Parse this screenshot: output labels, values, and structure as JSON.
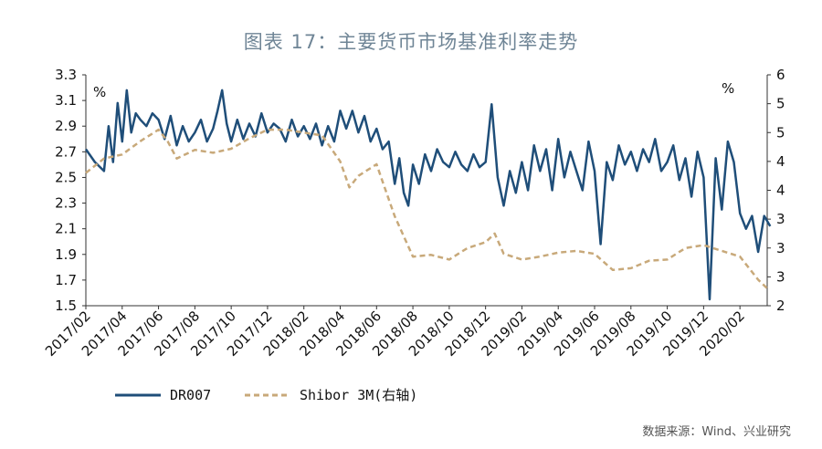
{
  "title": "图表 17：主要货币市场基准利率走势",
  "source": "数据来源：Wind、兴业研究",
  "chart_data": {
    "type": "line",
    "left_unit": "%",
    "right_unit": "%",
    "left_ylim": [
      1.5,
      3.3
    ],
    "right_ylim": [
      2,
      6
    ],
    "left_ticks": [
      "3.3",
      "3.1",
      "2.9",
      "2.7",
      "2.5",
      "2.3",
      "2.1",
      "1.9",
      "1.7",
      "1.5"
    ],
    "right_ticks": [
      "6",
      "5",
      "5",
      "4",
      "4",
      "3",
      "3",
      "3",
      "2"
    ],
    "x_ticks": [
      "2017/02",
      "2017/04",
      "2017/06",
      "2017/08",
      "2017/10",
      "2017/12",
      "2018/02",
      "2018/04",
      "2018/06",
      "2018/08",
      "2018/10",
      "2018/12",
      "2019/02",
      "2019/04",
      "2019/06",
      "2019/08",
      "2019/10",
      "2019/12",
      "2020/02"
    ],
    "x_range": [
      "2017/02",
      "2020/03"
    ],
    "series": [
      {
        "name": "DR007",
        "axis": "left",
        "color": "#1f4e79",
        "style": "solid",
        "points": [
          [
            "2017/02",
            2.72
          ],
          [
            "2017/02",
            2.62
          ],
          [
            "2017/03",
            2.55
          ],
          [
            "2017/03",
            2.9
          ],
          [
            "2017/03",
            2.62
          ],
          [
            "2017/03",
            3.08
          ],
          [
            "2017/04",
            2.78
          ],
          [
            "2017/04",
            3.18
          ],
          [
            "2017/04",
            2.85
          ],
          [
            "2017/04",
            3.0
          ],
          [
            "2017/05",
            2.95
          ],
          [
            "2017/05",
            2.9
          ],
          [
            "2017/05",
            3.0
          ],
          [
            "2017/06",
            2.95
          ],
          [
            "2017/06",
            2.8
          ],
          [
            "2017/06",
            2.98
          ],
          [
            "2017/07",
            2.75
          ],
          [
            "2017/07",
            2.9
          ],
          [
            "2017/07",
            2.78
          ],
          [
            "2017/08",
            2.85
          ],
          [
            "2017/08",
            2.95
          ],
          [
            "2017/08",
            2.78
          ],
          [
            "2017/09",
            2.88
          ],
          [
            "2017/09",
            3.02
          ],
          [
            "2017/09",
            3.18
          ],
          [
            "2017/09",
            2.92
          ],
          [
            "2017/10",
            2.78
          ],
          [
            "2017/10",
            2.95
          ],
          [
            "2017/10",
            2.8
          ],
          [
            "2017/11",
            2.92
          ],
          [
            "2017/11",
            2.82
          ],
          [
            "2017/11",
            3.0
          ],
          [
            "2017/12",
            2.85
          ],
          [
            "2017/12",
            2.92
          ],
          [
            "2017/12",
            2.88
          ],
          [
            "2018/01",
            2.78
          ],
          [
            "2018/01",
            2.95
          ],
          [
            "2018/01",
            2.82
          ],
          [
            "2018/02",
            2.9
          ],
          [
            "2018/02",
            2.8
          ],
          [
            "2018/02",
            2.92
          ],
          [
            "2018/03",
            2.75
          ],
          [
            "2018/03",
            2.9
          ],
          [
            "2018/03",
            2.78
          ],
          [
            "2018/04",
            3.02
          ],
          [
            "2018/04",
            2.88
          ],
          [
            "2018/04",
            3.02
          ],
          [
            "2018/05",
            2.85
          ],
          [
            "2018/05",
            2.98
          ],
          [
            "2018/05",
            2.78
          ],
          [
            "2018/06",
            2.88
          ],
          [
            "2018/06",
            2.72
          ],
          [
            "2018/06",
            2.78
          ],
          [
            "2018/07",
            2.45
          ],
          [
            "2018/07",
            2.65
          ],
          [
            "2018/07",
            2.38
          ],
          [
            "2018/07",
            2.28
          ],
          [
            "2018/08",
            2.6
          ],
          [
            "2018/08",
            2.45
          ],
          [
            "2018/08",
            2.68
          ],
          [
            "2018/09",
            2.55
          ],
          [
            "2018/09",
            2.72
          ],
          [
            "2018/09",
            2.62
          ],
          [
            "2018/10",
            2.58
          ],
          [
            "2018/10",
            2.7
          ],
          [
            "2018/10",
            2.6
          ],
          [
            "2018/11",
            2.55
          ],
          [
            "2018/11",
            2.68
          ],
          [
            "2018/11",
            2.58
          ],
          [
            "2018/12",
            2.62
          ],
          [
            "2018/12",
            3.07
          ],
          [
            "2018/12",
            2.5
          ],
          [
            "2019/01",
            2.28
          ],
          [
            "2019/01",
            2.55
          ],
          [
            "2019/01",
            2.38
          ],
          [
            "2019/02",
            2.62
          ],
          [
            "2019/02",
            2.4
          ],
          [
            "2019/02",
            2.75
          ],
          [
            "2019/03",
            2.55
          ],
          [
            "2019/03",
            2.72
          ],
          [
            "2019/03",
            2.4
          ],
          [
            "2019/04",
            2.8
          ],
          [
            "2019/04",
            2.5
          ],
          [
            "2019/04",
            2.7
          ],
          [
            "2019/05",
            2.55
          ],
          [
            "2019/05",
            2.4
          ],
          [
            "2019/05",
            2.78
          ],
          [
            "2019/06",
            2.55
          ],
          [
            "2019/06",
            1.98
          ],
          [
            "2019/06",
            2.62
          ],
          [
            "2019/07",
            2.48
          ],
          [
            "2019/07",
            2.75
          ],
          [
            "2019/07",
            2.6
          ],
          [
            "2019/08",
            2.7
          ],
          [
            "2019/08",
            2.55
          ],
          [
            "2019/08",
            2.72
          ],
          [
            "2019/09",
            2.62
          ],
          [
            "2019/09",
            2.8
          ],
          [
            "2019/09",
            2.55
          ],
          [
            "2019/10",
            2.62
          ],
          [
            "2019/10",
            2.75
          ],
          [
            "2019/10",
            2.48
          ],
          [
            "2019/11",
            2.65
          ],
          [
            "2019/11",
            2.35
          ],
          [
            "2019/11",
            2.7
          ],
          [
            "2019/12",
            2.5
          ],
          [
            "2019/12",
            1.55
          ],
          [
            "2019/12",
            2.65
          ],
          [
            "2020/01",
            2.25
          ],
          [
            "2020/01",
            2.78
          ],
          [
            "2020/01",
            2.62
          ],
          [
            "2020/02",
            2.22
          ],
          [
            "2020/02",
            2.1
          ],
          [
            "2020/02",
            2.2
          ],
          [
            "2020/03",
            1.92
          ],
          [
            "2020/03",
            2.2
          ],
          [
            "2020/03",
            2.12
          ]
        ]
      },
      {
        "name": "Shibor 3M(右轴)",
        "axis": "right",
        "color": "#c8a97a",
        "style": "dashed",
        "points": [
          [
            "2017/02",
            4.3
          ],
          [
            "2017/03",
            4.55
          ],
          [
            "2017/04",
            4.62
          ],
          [
            "2017/05",
            4.85
          ],
          [
            "2017/06",
            5.05
          ],
          [
            "2017/06",
            4.85
          ],
          [
            "2017/07",
            4.55
          ],
          [
            "2017/08",
            4.7
          ],
          [
            "2017/09",
            4.65
          ],
          [
            "2017/10",
            4.72
          ],
          [
            "2017/11",
            4.9
          ],
          [
            "2017/12",
            5.05
          ],
          [
            "2018/01",
            5.05
          ],
          [
            "2018/02",
            5.0
          ],
          [
            "2018/03",
            4.95
          ],
          [
            "2018/04",
            4.5
          ],
          [
            "2018/04",
            4.05
          ],
          [
            "2018/05",
            4.25
          ],
          [
            "2018/06",
            4.45
          ],
          [
            "2018/06",
            4.0
          ],
          [
            "2018/07",
            3.55
          ],
          [
            "2018/08",
            2.85
          ],
          [
            "2018/09",
            2.88
          ],
          [
            "2018/10",
            2.8
          ],
          [
            "2018/11",
            3.0
          ],
          [
            "2018/12",
            3.1
          ],
          [
            "2018/12",
            3.25
          ],
          [
            "2019/01",
            2.9
          ],
          [
            "2019/02",
            2.8
          ],
          [
            "2019/03",
            2.85
          ],
          [
            "2019/04",
            2.92
          ],
          [
            "2019/05",
            2.95
          ],
          [
            "2019/06",
            2.9
          ],
          [
            "2019/07",
            2.62
          ],
          [
            "2019/08",
            2.65
          ],
          [
            "2019/09",
            2.78
          ],
          [
            "2019/10",
            2.8
          ],
          [
            "2019/11",
            3.0
          ],
          [
            "2019/12",
            3.05
          ],
          [
            "2020/01",
            2.95
          ],
          [
            "2020/02",
            2.85
          ],
          [
            "2020/03",
            2.45
          ],
          [
            "2020/03",
            2.3
          ]
        ]
      }
    ],
    "legend": [
      "DR007",
      "Shibor 3M(右轴)"
    ],
    "legend_position": "bottom-left",
    "grid": false
  }
}
